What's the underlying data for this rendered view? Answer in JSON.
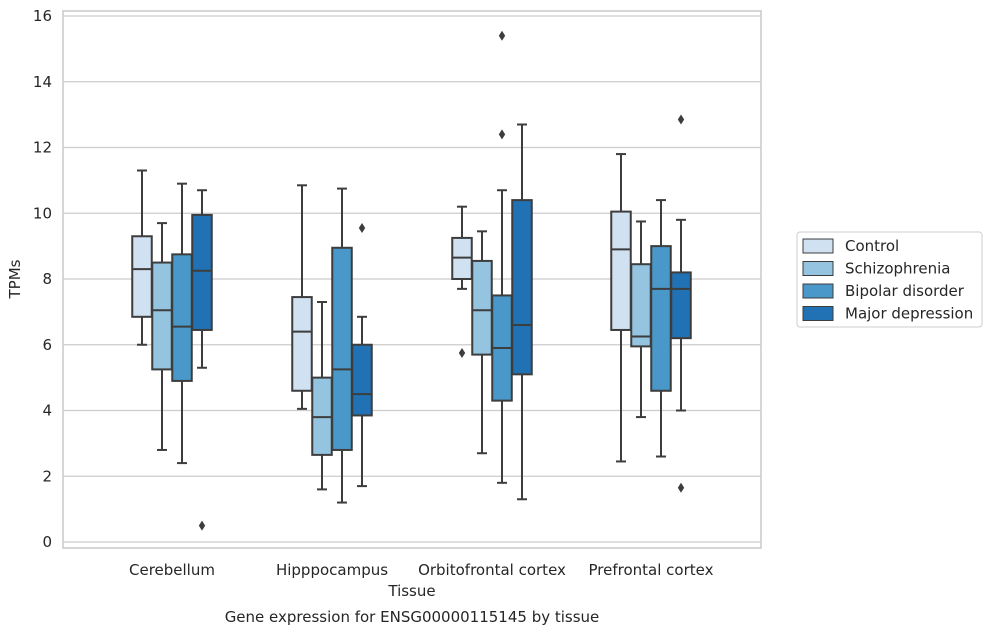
{
  "chart_data": {
    "type": "boxplot",
    "caption": "Gene expression for ENSG00000115145 by tissue",
    "xlabel": "Tissue",
    "ylabel": "TPMs",
    "ylim": [
      -0.2,
      16.2
    ],
    "yticks": [
      0,
      2,
      4,
      6,
      8,
      10,
      12,
      14,
      16
    ],
    "grid": true,
    "legend_position": "right-outside",
    "categories": [
      "Cerebellum",
      "Hipppocampus",
      "Orbitofrontal cortex",
      "Prefrontal cortex"
    ],
    "series": [
      {
        "name": "Control",
        "color": "#d0e1f2",
        "boxes": [
          {
            "whisker_low": 6.0,
            "q1": 6.85,
            "median": 8.3,
            "q3": 9.3,
            "whisker_high": 11.3,
            "outliers": []
          },
          {
            "whisker_low": 4.05,
            "q1": 4.6,
            "median": 6.4,
            "q3": 7.45,
            "whisker_high": 10.85,
            "outliers": []
          },
          {
            "whisker_low": 7.7,
            "q1": 8.0,
            "median": 8.65,
            "q3": 9.25,
            "whisker_high": 10.2,
            "outliers": [
              5.75
            ]
          },
          {
            "whisker_low": 2.45,
            "q1": 6.45,
            "median": 8.9,
            "q3": 10.05,
            "whisker_high": 11.8,
            "outliers": []
          }
        ]
      },
      {
        "name": "Schizophrenia",
        "color": "#94c4df",
        "boxes": [
          {
            "whisker_low": 2.8,
            "q1": 5.25,
            "median": 7.05,
            "q3": 8.5,
            "whisker_high": 9.7,
            "outliers": []
          },
          {
            "whisker_low": 1.6,
            "q1": 2.65,
            "median": 3.8,
            "q3": 5.0,
            "whisker_high": 7.3,
            "outliers": []
          },
          {
            "whisker_low": 2.7,
            "q1": 5.7,
            "median": 7.05,
            "q3": 8.55,
            "whisker_high": 9.45,
            "outliers": []
          },
          {
            "whisker_low": 3.8,
            "q1": 5.95,
            "median": 6.25,
            "q3": 8.45,
            "whisker_high": 9.75,
            "outliers": []
          }
        ]
      },
      {
        "name": "Bipolar disorder",
        "color": "#4a98c9",
        "boxes": [
          {
            "whisker_low": 2.4,
            "q1": 4.9,
            "median": 6.55,
            "q3": 8.75,
            "whisker_high": 10.9,
            "outliers": []
          },
          {
            "whisker_low": 1.2,
            "q1": 2.8,
            "median": 5.25,
            "q3": 8.95,
            "whisker_high": 10.75,
            "outliers": []
          },
          {
            "whisker_low": 1.8,
            "q1": 4.3,
            "median": 5.9,
            "q3": 7.5,
            "whisker_high": 10.7,
            "outliers": [
              12.4,
              15.4
            ]
          },
          {
            "whisker_low": 2.6,
            "q1": 4.6,
            "median": 7.7,
            "q3": 9.0,
            "whisker_high": 10.4,
            "outliers": []
          }
        ]
      },
      {
        "name": "Major depression",
        "color": "#2171b5",
        "boxes": [
          {
            "whisker_low": 5.3,
            "q1": 6.45,
            "median": 8.25,
            "q3": 9.95,
            "whisker_high": 10.7,
            "outliers": [
              0.5
            ]
          },
          {
            "whisker_low": 1.7,
            "q1": 3.85,
            "median": 4.5,
            "q3": 6.0,
            "whisker_high": 6.85,
            "outliers": [
              9.55
            ]
          },
          {
            "whisker_low": 1.3,
            "q1": 5.1,
            "median": 6.6,
            "q3": 10.4,
            "whisker_high": 12.7,
            "outliers": []
          },
          {
            "whisker_low": 4.0,
            "q1": 6.2,
            "median": 7.7,
            "q3": 8.2,
            "whisker_high": 9.8,
            "outliers": [
              1.65,
              12.85
            ]
          }
        ]
      }
    ]
  }
}
